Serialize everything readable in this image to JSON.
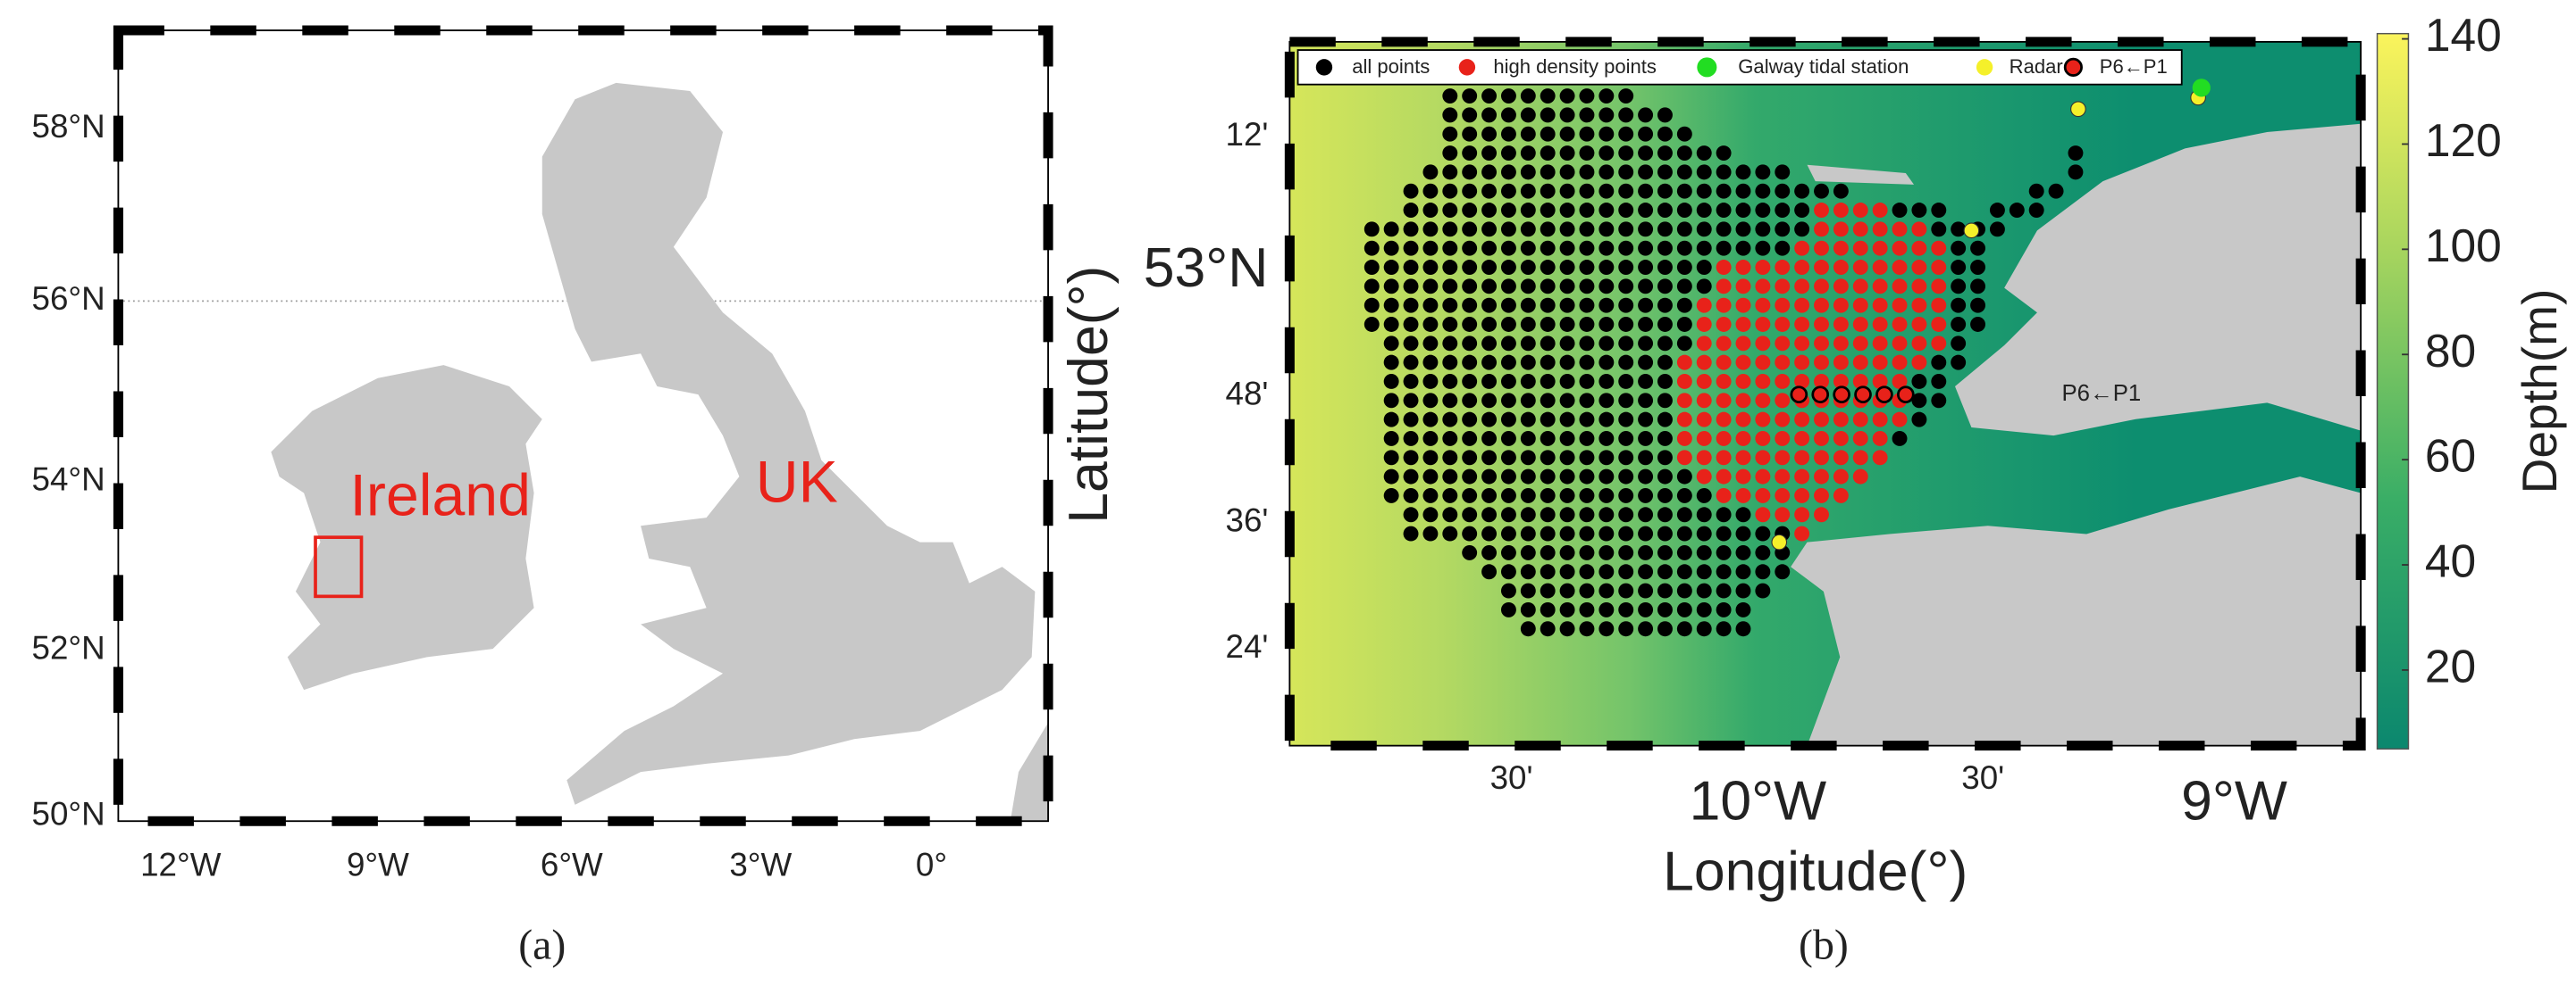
{
  "panel_a": {
    "caption": "(a)",
    "y_labels": [
      "58°N",
      "56°N",
      "54°N",
      "52°N",
      "50°N"
    ],
    "x_labels": [
      "12°W",
      "9°W",
      "6°W",
      "3°W",
      "0°"
    ],
    "annotations": [
      "Ireland",
      "UK"
    ]
  },
  "panel_b": {
    "caption": "(b)",
    "y_axis_title": "Latitude(°)",
    "x_axis_title": "Longitude(°)",
    "y_labels": [
      "12'",
      "53°N",
      "48'",
      "36'",
      "24'"
    ],
    "x_labels": [
      "30'",
      "10°W",
      "30'",
      "9°W"
    ],
    "legend": [
      "all points",
      "high density points",
      "Galway tidal station",
      "Radar",
      "P6←P1"
    ],
    "annotation": "P6←P1",
    "colorbar": {
      "title": "Depth(m)",
      "ticks": [
        20,
        40,
        60,
        80,
        100,
        120,
        140
      ],
      "lim": [
        5,
        141
      ]
    }
  }
}
